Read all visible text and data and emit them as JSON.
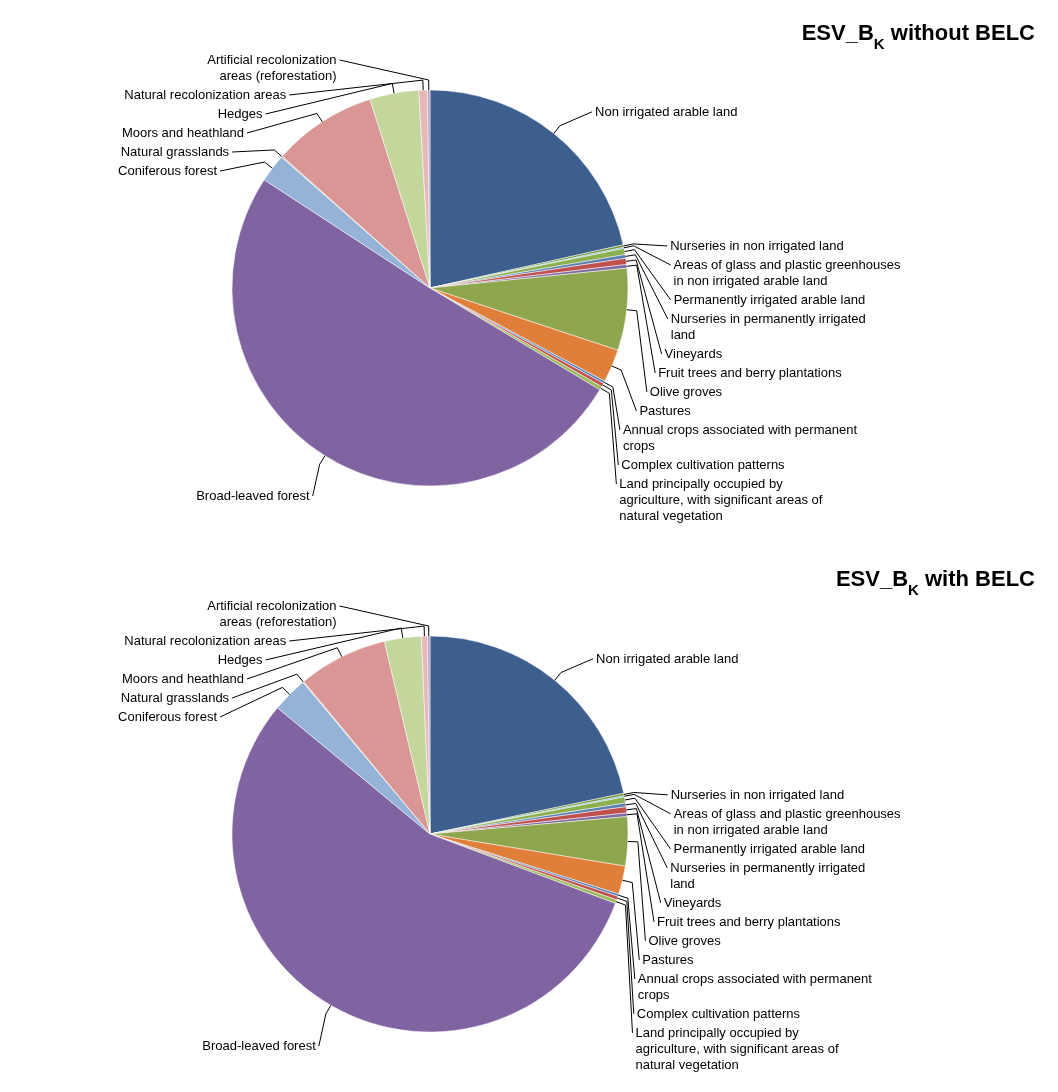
{
  "chart_data": [
    {
      "type": "pie",
      "title": "ESV_B$_{K}$ without BELC",
      "categories": [
        "Non irrigated arable land",
        "Nurseries in non irrigated land",
        "Areas of glass and plastic greenhouses in non irrigated arable land",
        "Permanently irrigated arable land",
        "Nurseries in permanently irrigated land",
        "Vineyards",
        "Fruit trees and berry plantations",
        "Olive groves",
        "Pastures",
        "Annual crops associated with permanent crops",
        "Complex cultivation patterns",
        "Land principally occupied by agriculture, with significant areas of natural vegetation",
        "Broad-leaved forest",
        "Coniferous forest",
        "Natural grasslands",
        "Moors and heathland",
        "Hedges",
        "Natural recolonization areas",
        "Artificial recolonization areas (reforestation)"
      ],
      "values": [
        21.5,
        0.2,
        0.1,
        0.5,
        0.3,
        0.5,
        0.3,
        6.7,
        2.7,
        0.2,
        0.3,
        0.3,
        50.6,
        2.3,
        0.1,
        8.5,
        4.0,
        0.7,
        0.2
      ],
      "colors": [
        "#3c5f8d",
        "#77933c",
        "#4bacc6",
        "#8db04f",
        "#5b7fb5",
        "#c0504d",
        "#7f6ba3",
        "#8ea64d",
        "#e07f3a",
        "#4f81bd",
        "#c0504d",
        "#9bbb59",
        "#8064a2",
        "#95b3d7",
        "#cccccc",
        "#d99694",
        "#c3d69b",
        "#e6b9b8",
        "#b2a1c7"
      ]
    },
    {
      "type": "pie",
      "title": "ESV_B$_{K}$ with BELC",
      "categories": [
        "Non irrigated arable land",
        "Nurseries in non irrigated land",
        "Areas of glass and plastic greenhouses in non irrigated arable land",
        "Permanently irrigated arable land",
        "Nurseries in permanently irrigated land",
        "Vineyards",
        "Fruit trees and berry plantations",
        "Olive groves",
        "Pastures",
        "Annual crops associated with permanent crops",
        "Complex cultivation patterns",
        "Land principally occupied by agriculture, with significant areas of natural vegetation",
        "Broad-leaved forest",
        "Coniferous forest",
        "Natural grasslands",
        "Moors and heathland",
        "Hedges",
        "Natural recolonization areas",
        "Artificial recolonization areas (reforestation)"
      ],
      "values": [
        21.7,
        0.2,
        0.1,
        0.5,
        0.3,
        0.5,
        0.3,
        4.0,
        2.3,
        0.2,
        0.3,
        0.3,
        55.3,
        2.9,
        0.1,
        7.3,
        3.0,
        0.5,
        0.2
      ],
      "colors": [
        "#3c5f8d",
        "#77933c",
        "#4bacc6",
        "#8db04f",
        "#5b7fb5",
        "#c0504d",
        "#7f6ba3",
        "#8ea64d",
        "#e07f3a",
        "#4f81bd",
        "#c0504d",
        "#9bbb59",
        "#8064a2",
        "#95b3d7",
        "#cccccc",
        "#d99694",
        "#c3d69b",
        "#e6b9b8",
        "#b2a1c7"
      ]
    }
  ]
}
